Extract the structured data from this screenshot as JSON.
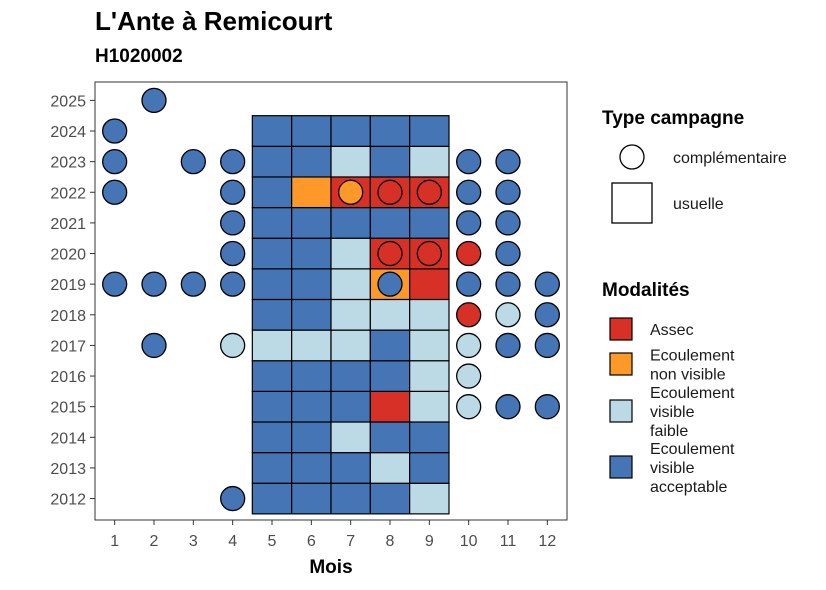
{
  "chart_data": {
    "type": "heatmap",
    "title": "L'Ante à Remicourt",
    "subtitle": "H1020002",
    "xlabel": "Mois",
    "ylabel": "",
    "x_ticks": [
      "1",
      "2",
      "3",
      "4",
      "5",
      "6",
      "7",
      "8",
      "9",
      "10",
      "11",
      "12"
    ],
    "y_ticks": [
      "2012",
      "2013",
      "2014",
      "2015",
      "2016",
      "2017",
      "2018",
      "2019",
      "2020",
      "2021",
      "2022",
      "2023",
      "2024",
      "2025"
    ],
    "xlim": [
      0.5,
      12.5
    ],
    "ylim": [
      2011.3,
      2025.6
    ],
    "grid": false,
    "colors": {
      "assec": "#d73027",
      "ecoulement_non_visible": "#fe9929",
      "ecoulement_visible_faible": "#bcd9e6",
      "ecoulement_visible_acceptable": "#4575b4"
    },
    "legend": {
      "placement": "right",
      "type_title": "Type campagne",
      "type_items": [
        {
          "key": "complementaire",
          "label": "complémentaire",
          "shape": "circle"
        },
        {
          "key": "usuelle",
          "label": "usuelle",
          "shape": "square"
        }
      ],
      "mod_title": "Modalités",
      "mod_items": [
        {
          "key": "assec",
          "lines": [
            "Assec"
          ]
        },
        {
          "key": "ecoulement_non_visible",
          "lines": [
            "Ecoulement",
            "non visible"
          ]
        },
        {
          "key": "ecoulement_visible_faible",
          "lines": [
            "Ecoulement",
            "visible",
            "faible"
          ]
        },
        {
          "key": "ecoulement_visible_acceptable",
          "lines": [
            "Ecoulement",
            "visible",
            "acceptable"
          ]
        }
      ]
    },
    "usuelle": [
      {
        "year": 2012,
        "months": [
          "ecoulement_visible_acceptable",
          "ecoulement_visible_acceptable",
          "ecoulement_visible_acceptable",
          "ecoulement_visible_acceptable",
          "ecoulement_visible_faible"
        ]
      },
      {
        "year": 2013,
        "months": [
          "ecoulement_visible_acceptable",
          "ecoulement_visible_acceptable",
          "ecoulement_visible_acceptable",
          "ecoulement_visible_faible",
          "ecoulement_visible_acceptable"
        ]
      },
      {
        "year": 2014,
        "months": [
          "ecoulement_visible_acceptable",
          "ecoulement_visible_acceptable",
          "ecoulement_visible_faible",
          "ecoulement_visible_acceptable",
          "ecoulement_visible_acceptable"
        ]
      },
      {
        "year": 2015,
        "months": [
          "ecoulement_visible_acceptable",
          "ecoulement_visible_acceptable",
          "ecoulement_visible_acceptable",
          "assec",
          "ecoulement_visible_faible"
        ]
      },
      {
        "year": 2016,
        "months": [
          "ecoulement_visible_acceptable",
          "ecoulement_visible_acceptable",
          "ecoulement_visible_acceptable",
          "ecoulement_visible_acceptable",
          "ecoulement_visible_faible"
        ]
      },
      {
        "year": 2017,
        "months": [
          "ecoulement_visible_faible",
          "ecoulement_visible_faible",
          "ecoulement_visible_faible",
          "ecoulement_visible_acceptable",
          "ecoulement_visible_faible"
        ]
      },
      {
        "year": 2018,
        "months": [
          "ecoulement_visible_acceptable",
          "ecoulement_visible_acceptable",
          "ecoulement_visible_faible",
          "ecoulement_visible_faible",
          "ecoulement_visible_faible"
        ]
      },
      {
        "year": 2019,
        "months": [
          "ecoulement_visible_acceptable",
          "ecoulement_visible_acceptable",
          "ecoulement_visible_faible",
          "ecoulement_non_visible",
          "assec"
        ]
      },
      {
        "year": 2020,
        "months": [
          "ecoulement_visible_acceptable",
          "ecoulement_visible_acceptable",
          "ecoulement_visible_faible",
          "assec",
          "assec"
        ]
      },
      {
        "year": 2021,
        "months": [
          "ecoulement_visible_acceptable",
          "ecoulement_visible_acceptable",
          "ecoulement_visible_acceptable",
          "ecoulement_visible_acceptable",
          "ecoulement_visible_acceptable"
        ]
      },
      {
        "year": 2022,
        "months": [
          "ecoulement_visible_acceptable",
          "ecoulement_non_visible",
          "assec",
          "assec",
          "assec"
        ]
      },
      {
        "year": 2023,
        "months": [
          "ecoulement_visible_acceptable",
          "ecoulement_visible_acceptable",
          "ecoulement_visible_faible",
          "ecoulement_visible_acceptable",
          "ecoulement_visible_faible"
        ]
      },
      {
        "year": 2024,
        "months": [
          "ecoulement_visible_acceptable",
          "ecoulement_visible_acceptable",
          "ecoulement_visible_acceptable",
          "ecoulement_visible_acceptable",
          "ecoulement_visible_acceptable"
        ]
      }
    ],
    "usuelle_months": [
      5,
      6,
      7,
      8,
      9
    ],
    "complementaire": [
      {
        "year": 2012,
        "month": 4,
        "m": "ecoulement_visible_acceptable"
      },
      {
        "year": 2015,
        "month": 10,
        "m": "ecoulement_visible_faible"
      },
      {
        "year": 2015,
        "month": 11,
        "m": "ecoulement_visible_acceptable"
      },
      {
        "year": 2015,
        "month": 12,
        "m": "ecoulement_visible_acceptable"
      },
      {
        "year": 2016,
        "month": 10,
        "m": "ecoulement_visible_faible"
      },
      {
        "year": 2017,
        "month": 2,
        "m": "ecoulement_visible_acceptable"
      },
      {
        "year": 2017,
        "month": 4,
        "m": "ecoulement_visible_faible"
      },
      {
        "year": 2017,
        "month": 10,
        "m": "ecoulement_visible_faible"
      },
      {
        "year": 2017,
        "month": 11,
        "m": "ecoulement_visible_acceptable"
      },
      {
        "year": 2017,
        "month": 12,
        "m": "ecoulement_visible_acceptable"
      },
      {
        "year": 2018,
        "month": 10,
        "m": "assec"
      },
      {
        "year": 2018,
        "month": 11,
        "m": "ecoulement_visible_faible"
      },
      {
        "year": 2018,
        "month": 12,
        "m": "ecoulement_visible_acceptable"
      },
      {
        "year": 2019,
        "month": 1,
        "m": "ecoulement_visible_acceptable"
      },
      {
        "year": 2019,
        "month": 2,
        "m": "ecoulement_visible_acceptable"
      },
      {
        "year": 2019,
        "month": 3,
        "m": "ecoulement_visible_acceptable"
      },
      {
        "year": 2019,
        "month": 4,
        "m": "ecoulement_visible_acceptable"
      },
      {
        "year": 2019,
        "month": 8,
        "m": "ecoulement_visible_acceptable"
      },
      {
        "year": 2019,
        "month": 10,
        "m": "ecoulement_visible_acceptable"
      },
      {
        "year": 2019,
        "month": 11,
        "m": "ecoulement_visible_acceptable"
      },
      {
        "year": 2019,
        "month": 12,
        "m": "ecoulement_visible_acceptable"
      },
      {
        "year": 2020,
        "month": 4,
        "m": "ecoulement_visible_acceptable"
      },
      {
        "year": 2020,
        "month": 8,
        "m": "assec"
      },
      {
        "year": 2020,
        "month": 9,
        "m": "assec"
      },
      {
        "year": 2020,
        "month": 10,
        "m": "assec"
      },
      {
        "year": 2020,
        "month": 11,
        "m": "ecoulement_visible_acceptable"
      },
      {
        "year": 2021,
        "month": 4,
        "m": "ecoulement_visible_acceptable"
      },
      {
        "year": 2021,
        "month": 10,
        "m": "ecoulement_visible_acceptable"
      },
      {
        "year": 2021,
        "month": 11,
        "m": "ecoulement_visible_acceptable"
      },
      {
        "year": 2022,
        "month": 1,
        "m": "ecoulement_visible_acceptable"
      },
      {
        "year": 2022,
        "month": 4,
        "m": "ecoulement_visible_acceptable"
      },
      {
        "year": 2022,
        "month": 7,
        "m": "ecoulement_non_visible"
      },
      {
        "year": 2022,
        "month": 8,
        "m": "assec"
      },
      {
        "year": 2022,
        "month": 9,
        "m": "assec"
      },
      {
        "year": 2022,
        "month": 10,
        "m": "ecoulement_visible_acceptable"
      },
      {
        "year": 2022,
        "month": 11,
        "m": "ecoulement_visible_acceptable"
      },
      {
        "year": 2023,
        "month": 1,
        "m": "ecoulement_visible_acceptable"
      },
      {
        "year": 2023,
        "month": 3,
        "m": "ecoulement_visible_acceptable"
      },
      {
        "year": 2023,
        "month": 4,
        "m": "ecoulement_visible_acceptable"
      },
      {
        "year": 2023,
        "month": 10,
        "m": "ecoulement_visible_acceptable"
      },
      {
        "year": 2023,
        "month": 11,
        "m": "ecoulement_visible_acceptable"
      },
      {
        "year": 2024,
        "month": 1,
        "m": "ecoulement_visible_acceptable"
      },
      {
        "year": 2025,
        "month": 2,
        "m": "ecoulement_visible_acceptable"
      }
    ]
  }
}
